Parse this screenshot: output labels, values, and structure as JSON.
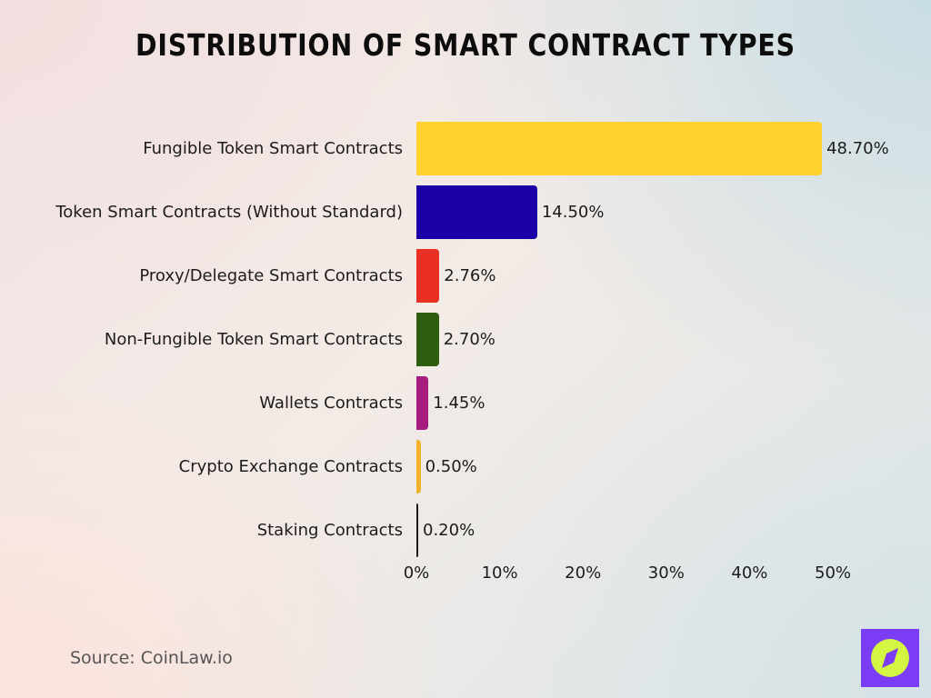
{
  "title": "Distribution of Smart Contract Types",
  "source": "Source: CoinLaw.io",
  "logo": {
    "icon": "compass-icon",
    "background": "#7a3cf5",
    "circle": "#d4f542"
  },
  "chart_data": {
    "type": "bar",
    "orientation": "horizontal",
    "title": "Distribution of Smart Contract Types",
    "xlabel": "",
    "ylabel": "",
    "xlim": [
      0,
      50
    ],
    "grid": false,
    "legend": null,
    "categories": [
      "Fungible Token Smart Contracts",
      "Token Smart Contracts (Without Standard)",
      "Proxy/Delegate Smart Contracts",
      "Non-Fungible Token Smart Contracts",
      "Wallets Contracts",
      "Crypto Exchange Contracts",
      "Staking Contracts"
    ],
    "values": [
      48.7,
      14.5,
      2.76,
      2.7,
      1.45,
      0.5,
      0.2
    ],
    "value_labels": [
      "48.70%",
      "14.50%",
      "2.76%",
      "2.70%",
      "1.45%",
      "0.50%",
      "0.20%"
    ],
    "colors": [
      "#ffd230",
      "#1b00a8",
      "#ea3023",
      "#2e5d10",
      "#a61d7f",
      "#f2b12b",
      "#1a1a1a"
    ],
    "x_ticks": [
      "0%",
      "10%",
      "20%",
      "30%",
      "40%",
      "50%"
    ],
    "x_tick_values": [
      0,
      10,
      20,
      30,
      40,
      50
    ],
    "source": "Source: CoinLaw.io"
  }
}
